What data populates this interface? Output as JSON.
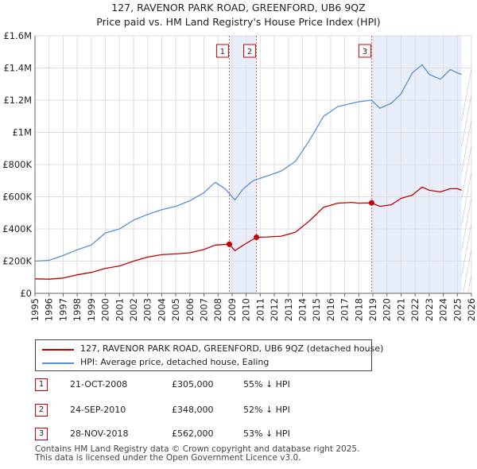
{
  "title_line1": "127, RAVENOR PARK ROAD, GREENFORD, UB6 9QZ",
  "title_line2": "Price paid vs. HM Land Registry's House Price Index (HPI)",
  "colors": {
    "property": "#c00000",
    "hpi": "#5a8fd6",
    "band": "#e8eefa",
    "marker_line": "#d06060"
  },
  "chart_data": {
    "type": "line",
    "xlim": [
      1995,
      2026
    ],
    "ylim": [
      0,
      1600000
    ],
    "y_ticks": [
      {
        "value": 0,
        "label": "£0"
      },
      {
        "value": 200000,
        "label": "£200K"
      },
      {
        "value": 400000,
        "label": "£400K"
      },
      {
        "value": 600000,
        "label": "£600K"
      },
      {
        "value": 800000,
        "label": "£800K"
      },
      {
        "value": 1000000,
        "label": "£1M"
      },
      {
        "value": 1200000,
        "label": "£1.2M"
      },
      {
        "value": 1400000,
        "label": "£1.4M"
      },
      {
        "value": 1600000,
        "label": "£1.6M"
      }
    ],
    "x_ticks": [
      "1995",
      "1996",
      "1997",
      "1998",
      "1999",
      "2000",
      "2001",
      "2002",
      "2003",
      "2004",
      "2005",
      "2006",
      "2007",
      "2008",
      "2009",
      "2010",
      "2011",
      "2012",
      "2013",
      "2014",
      "2015",
      "2016",
      "2017",
      "2018",
      "2019",
      "2020",
      "2021",
      "2022",
      "2023",
      "2024",
      "2025",
      "2026"
    ],
    "series": [
      {
        "name": "127, RAVENOR PARK ROAD, GREENFORD, UB6 9QZ (detached house)",
        "color": "#c00000",
        "points": [
          [
            1995.0,
            90000
          ],
          [
            1996.0,
            88000
          ],
          [
            1997.0,
            95000
          ],
          [
            1998.0,
            115000
          ],
          [
            1999.0,
            130000
          ],
          [
            2000.0,
            155000
          ],
          [
            2001.0,
            170000
          ],
          [
            2002.0,
            200000
          ],
          [
            2003.0,
            225000
          ],
          [
            2004.0,
            240000
          ],
          [
            2005.0,
            245000
          ],
          [
            2006.0,
            252000
          ],
          [
            2007.0,
            272000
          ],
          [
            2007.8,
            300000
          ],
          [
            2008.8,
            305000
          ],
          [
            2009.2,
            265000
          ],
          [
            2009.8,
            300000
          ],
          [
            2010.73,
            348000
          ],
          [
            2011.5,
            350000
          ],
          [
            2012.5,
            355000
          ],
          [
            2013.5,
            380000
          ],
          [
            2014.5,
            450000
          ],
          [
            2015.5,
            535000
          ],
          [
            2016.5,
            560000
          ],
          [
            2017.5,
            565000
          ],
          [
            2018.0,
            560000
          ],
          [
            2018.9,
            562000
          ],
          [
            2019.5,
            540000
          ],
          [
            2020.3,
            550000
          ],
          [
            2021.0,
            590000
          ],
          [
            2021.8,
            610000
          ],
          [
            2022.5,
            660000
          ],
          [
            2023.0,
            640000
          ],
          [
            2023.8,
            630000
          ],
          [
            2024.5,
            650000
          ],
          [
            2025.0,
            650000
          ],
          [
            2025.3,
            640000
          ]
        ]
      },
      {
        "name": "HPI: Average price, detached house, Ealing",
        "color": "#5a8fd6",
        "points": [
          [
            1995.0,
            200000
          ],
          [
            1996.0,
            205000
          ],
          [
            1997.0,
            235000
          ],
          [
            1998.0,
            270000
          ],
          [
            1999.0,
            300000
          ],
          [
            2000.0,
            375000
          ],
          [
            2001.0,
            400000
          ],
          [
            2002.0,
            455000
          ],
          [
            2003.0,
            490000
          ],
          [
            2004.0,
            520000
          ],
          [
            2005.0,
            540000
          ],
          [
            2006.0,
            575000
          ],
          [
            2007.0,
            625000
          ],
          [
            2007.8,
            690000
          ],
          [
            2008.5,
            650000
          ],
          [
            2009.2,
            580000
          ],
          [
            2009.8,
            650000
          ],
          [
            2010.5,
            700000
          ],
          [
            2011.5,
            730000
          ],
          [
            2012.5,
            760000
          ],
          [
            2013.5,
            820000
          ],
          [
            2014.5,
            950000
          ],
          [
            2015.5,
            1100000
          ],
          [
            2016.5,
            1160000
          ],
          [
            2017.5,
            1180000
          ],
          [
            2018.0,
            1190000
          ],
          [
            2018.9,
            1200000
          ],
          [
            2019.5,
            1150000
          ],
          [
            2020.3,
            1180000
          ],
          [
            2021.0,
            1240000
          ],
          [
            2021.8,
            1370000
          ],
          [
            2022.5,
            1420000
          ],
          [
            2023.0,
            1360000
          ],
          [
            2023.8,
            1330000
          ],
          [
            2024.5,
            1390000
          ],
          [
            2025.0,
            1370000
          ],
          [
            2025.3,
            1360000
          ]
        ]
      }
    ],
    "transactions": [
      {
        "id": "1",
        "x": 2008.8,
        "value": 305000
      },
      {
        "id": "2",
        "x": 2010.73,
        "value": 348000
      },
      {
        "id": "3",
        "x": 2018.91,
        "value": 562000
      }
    ],
    "bands": [
      [
        2008.8,
        2010.73
      ],
      [
        2018.91,
        2025.3
      ]
    ],
    "forecast_start": 2025.3
  },
  "legend": {
    "property": "127, RAVENOR PARK ROAD, GREENFORD, UB6 9QZ (detached house)",
    "hpi": "HPI: Average price, detached house, Ealing"
  },
  "transactions_table": [
    {
      "id": "1",
      "date": "21-OCT-2008",
      "price": "£305,000",
      "diff": "55% ↓ HPI"
    },
    {
      "id": "2",
      "date": "24-SEP-2010",
      "price": "£348,000",
      "diff": "52% ↓ HPI"
    },
    {
      "id": "3",
      "date": "28-NOV-2018",
      "price": "£562,000",
      "diff": "53% ↓ HPI"
    }
  ],
  "footer_line1": "Contains HM Land Registry data © Crown copyright and database right 2025.",
  "footer_line2": "This data is licensed under the Open Government Licence v3.0."
}
